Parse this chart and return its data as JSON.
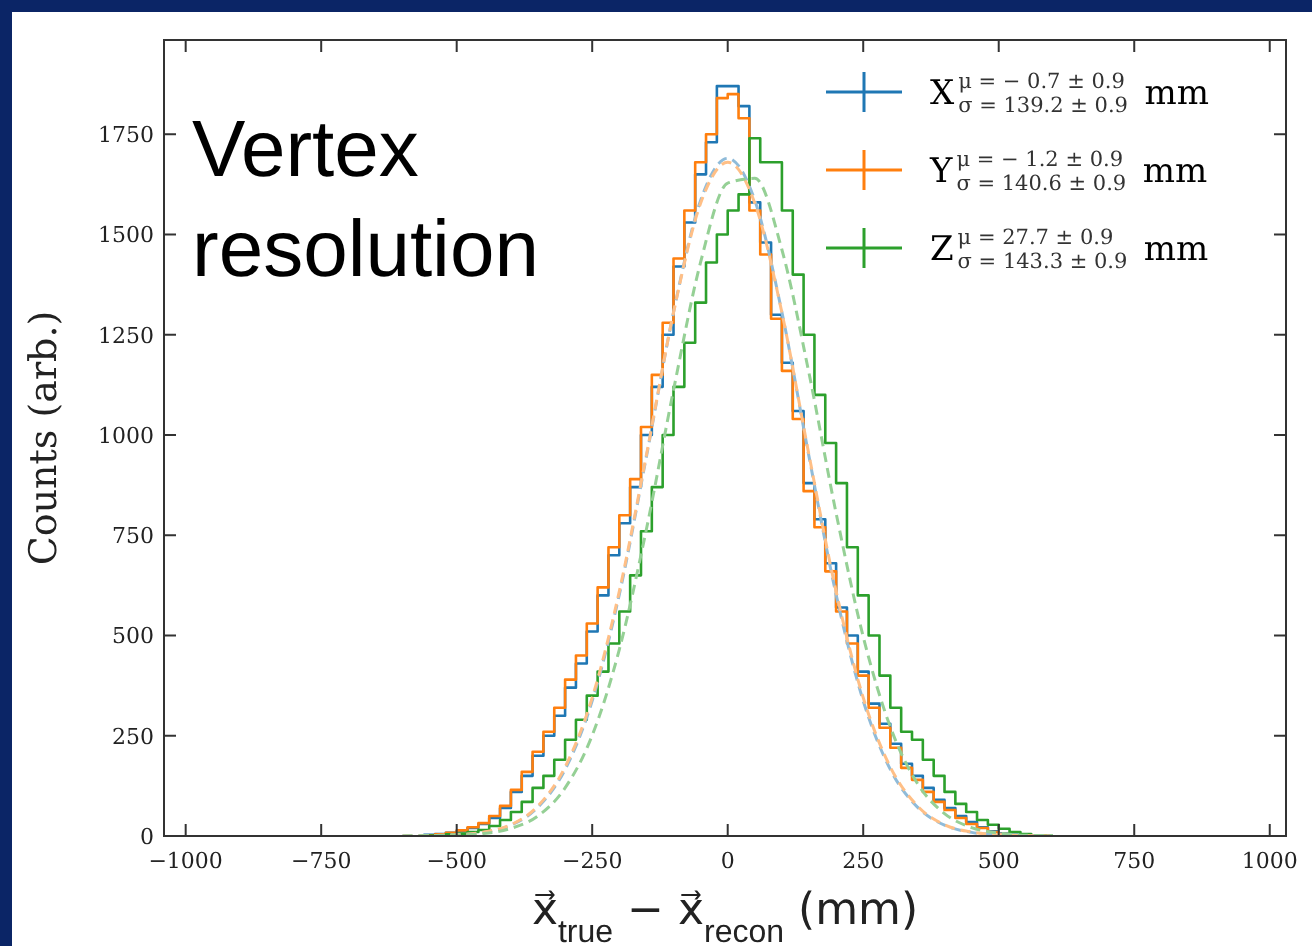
{
  "chart_data": {
    "type": "histogram",
    "xlabel": "x⃗$_{true}$ − x⃗$_{recon}$ (mm)",
    "ylabel": "Counts (arb.)",
    "annotations": [
      "Vertex resolution"
    ],
    "xlim": [
      -1040,
      1030
    ],
    "ylim": [
      0,
      1985
    ],
    "xticks": [
      {
        "value": -1000,
        "label": "−1000"
      },
      {
        "value": -750,
        "label": "−750"
      },
      {
        "value": -500,
        "label": "−500"
      },
      {
        "value": -250,
        "label": "−250"
      },
      0,
      250,
      500,
      750,
      1000
    ],
    "yticks": [
      0,
      250,
      500,
      750,
      1000,
      1250,
      1500,
      1750
    ],
    "legend": "top right",
    "bins": [
      -560,
      -540,
      -520,
      -500,
      -480,
      -460,
      -440,
      -420,
      -400,
      -380,
      -360,
      -340,
      -320,
      -300,
      -280,
      -260,
      -240,
      -220,
      -200,
      -180,
      -160,
      -140,
      -120,
      -100,
      -80,
      -60,
      -40,
      -20,
      0,
      20,
      40,
      60,
      80,
      100,
      120,
      140,
      160,
      180,
      200,
      220,
      240,
      260,
      280,
      300,
      320,
      340,
      360,
      380,
      400,
      420,
      440,
      460,
      480,
      500,
      520,
      540,
      560,
      580,
      600
    ],
    "series": [
      {
        "name": "X$^{μ = − 0.7 ± 0.9}$$_{σ = 139.2 ± 0.9}$ mm",
        "color": "#1f77b4",
        "values": [
          3,
          5,
          8,
          12,
          20,
          30,
          45,
          70,
          110,
          150,
          200,
          250,
          300,
          370,
          430,
          510,
          600,
          700,
          780,
          870,
          1000,
          1120,
          1250,
          1420,
          1530,
          1650,
          1730,
          1870,
          1870,
          1820,
          1580,
          1480,
          1300,
          1180,
          1060,
          880,
          790,
          680,
          570,
          500,
          410,
          330,
          280,
          230,
          180,
          150,
          120,
          90,
          70,
          50,
          35,
          22,
          12,
          6,
          3,
          1,
          0,
          0
        ]
      },
      {
        "name": "Y$^{μ = − 1.2 ± 0.9}$$_{σ = 140.6 ± 0.9}$ mm",
        "color": "#ff7f0e",
        "values": [
          2,
          4,
          8,
          14,
          22,
          32,
          50,
          75,
          115,
          160,
          210,
          260,
          320,
          390,
          450,
          530,
          620,
          720,
          800,
          890,
          1020,
          1150,
          1280,
          1440,
          1560,
          1680,
          1750,
          1840,
          1850,
          1790,
          1560,
          1450,
          1290,
          1160,
          1040,
          860,
          770,
          660,
          560,
          480,
          400,
          320,
          270,
          220,
          170,
          140,
          110,
          85,
          65,
          45,
          30,
          20,
          10,
          5,
          2,
          1,
          0,
          0
        ]
      },
      {
        "name": "Z$^{μ = 27.7 ± 0.9}$$_{σ = 143.3 ± 0.9}$ mm",
        "color": "#2ca02c",
        "values": [
          1,
          2,
          4,
          6,
          10,
          15,
          25,
          40,
          60,
          85,
          120,
          150,
          190,
          240,
          290,
          350,
          410,
          480,
          560,
          650,
          760,
          870,
          1000,
          1120,
          1230,
          1330,
          1430,
          1500,
          1560,
          1600,
          1740,
          1680,
          1680,
          1560,
          1400,
          1250,
          1100,
          980,
          880,
          720,
          600,
          500,
          400,
          320,
          260,
          240,
          190,
          150,
          110,
          80,
          60,
          40,
          28,
          18,
          10,
          5,
          2,
          1
        ]
      },
      {
        "type": "line",
        "line_style": "dashed",
        "color": "#8fbbd9",
        "x": [
          -600,
          -550,
          -500,
          -450,
          -400,
          -350,
          -300,
          -250,
          -200,
          -150,
          -100,
          -50,
          0,
          50,
          100,
          150,
          200,
          250,
          300,
          350,
          400,
          450,
          500,
          550,
          600
        ],
        "values": [
          0,
          1,
          3,
          9,
          27,
          72,
          166,
          337,
          602,
          946,
          1306,
          1585,
          1690,
          1585,
          1306,
          946,
          602,
          337,
          166,
          72,
          27,
          9,
          3,
          1,
          0
        ]
      },
      {
        "type": "line",
        "line_style": "dashed",
        "color": "#ffbf86",
        "x": [
          -600,
          -550,
          -500,
          -450,
          -400,
          -350,
          -300,
          -250,
          -200,
          -150,
          -100,
          -50,
          0,
          50,
          100,
          150,
          200,
          250,
          300,
          350,
          400,
          450,
          500,
          550,
          600
        ],
        "values": [
          0,
          1,
          3,
          10,
          28,
          75,
          172,
          345,
          610,
          950,
          1305,
          1578,
          1680,
          1578,
          1305,
          950,
          610,
          345,
          172,
          75,
          28,
          10,
          3,
          1,
          0
        ]
      },
      {
        "type": "line",
        "line_style": "dashed",
        "color": "#95d095",
        "x": [
          -600,
          -550,
          -500,
          -450,
          -400,
          -350,
          -300,
          -250,
          -200,
          -150,
          -100,
          -50,
          0,
          50,
          100,
          150,
          200,
          250,
          300,
          350,
          400,
          450,
          500,
          550,
          600
        ],
        "values": [
          0,
          1,
          2,
          6,
          19,
          50,
          120,
          251,
          465,
          765,
          1112,
          1431,
          1628,
          1640,
          1462,
          1154,
          805,
          497,
          272,
          131,
          56,
          21,
          7,
          2,
          1
        ]
      }
    ]
  }
}
